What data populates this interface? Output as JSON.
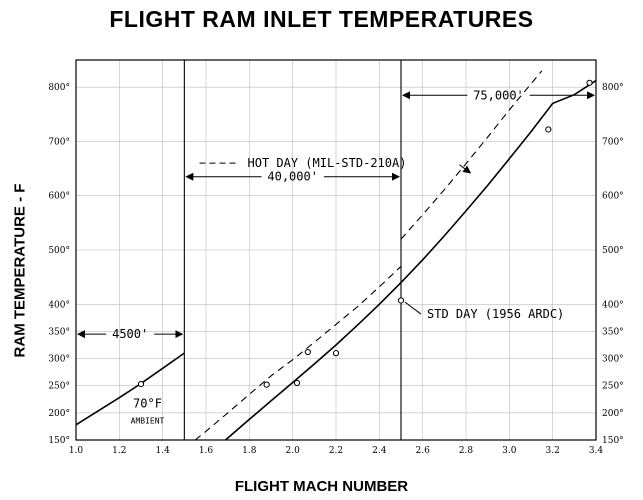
{
  "chart_data": {
    "type": "line",
    "title": "FLIGHT RAM INLET TEMPERATURES",
    "xlabel": "FLIGHT MACH NUMBER",
    "ylabel": "RAM TEMPERATURE - F",
    "xlim": [
      1.0,
      3.4
    ],
    "ylim": [
      150,
      850
    ],
    "x_ticks": [
      1.0,
      1.2,
      1.4,
      1.6,
      1.8,
      2.0,
      2.2,
      2.4,
      2.6,
      2.8,
      3.0,
      3.2,
      3.4
    ],
    "x_tick_labels": [
      "1.0",
      "1.2",
      "1.4",
      "1.6",
      "1.8",
      "2.0",
      "2.2",
      "2.4",
      "2.6",
      "2.8",
      "3.0",
      "3.2",
      "3.4"
    ],
    "y_ticks": [
      150,
      200,
      250,
      300,
      350,
      400,
      500,
      600,
      700,
      800
    ],
    "y_tick_labels": [
      "150°",
      "200°",
      "250°",
      "300°",
      "350°",
      "400°",
      "500°",
      "600°",
      "700°",
      "800°"
    ],
    "altitude_boundaries": [
      1.5,
      2.5
    ],
    "series": [
      {
        "name": "STD DAY (1956 ARDC)",
        "style": "solid",
        "segments": [
          {
            "x": [
              1.0,
              1.1,
              1.2,
              1.3,
              1.4,
              1.5
            ],
            "y": [
              178,
              203,
              228,
              254,
              282,
              310
            ]
          },
          {
            "x": [
              1.69,
              1.8,
              1.9,
              2.0,
              2.1,
              2.2,
              2.3,
              2.4,
              2.5,
              2.6,
              2.7,
              2.8,
              2.9,
              3.0,
              3.1,
              3.2,
              3.3,
              3.4
            ],
            "y": [
              150,
              188,
              222,
              256,
              290,
              325,
              362,
              400,
              440,
              482,
              526,
              572,
              619,
              668,
              718,
              770,
              786,
              812
            ]
          }
        ],
        "markers": {
          "x": [
            1.3,
            2.02,
            2.2,
            2.5,
            3.18,
            3.37
          ],
          "y": [
            253,
            255,
            310,
            407,
            722,
            808
          ]
        }
      },
      {
        "name": "HOT DAY (MIL-STD-210A)",
        "style": "dashed",
        "segments": [
          {
            "x": [
              1.55,
              1.6,
              1.7,
              1.8,
              1.9,
              2.0,
              2.1,
              2.2,
              2.3,
              2.4,
              2.5
            ],
            "y": [
              150,
              166,
              200,
              234,
              268,
              298,
              330,
              363,
              396,
              432,
              470
            ]
          },
          {
            "x": [
              2.5,
              2.6,
              2.7,
              2.8,
              2.9,
              3.0,
              3.1,
              3.15
            ],
            "y": [
              520,
              565,
              611,
              659,
              708,
              758,
              806,
              830
            ]
          }
        ],
        "markers": {
          "x": [
            1.88,
            2.07
          ],
          "y": [
            252,
            312
          ]
        }
      }
    ],
    "annotations": [
      {
        "text": "4500'",
        "span": [
          1.0,
          1.5
        ],
        "y": 345
      },
      {
        "text": "40,000'",
        "span": [
          1.5,
          2.5
        ],
        "y": 635
      },
      {
        "text": "75,000'",
        "span": [
          2.5,
          3.4
        ],
        "y": 785
      },
      {
        "text": "70°F",
        "x": 1.33,
        "y": 210
      },
      {
        "text": "AMBIENT",
        "x": 1.33,
        "y": 180
      }
    ]
  }
}
